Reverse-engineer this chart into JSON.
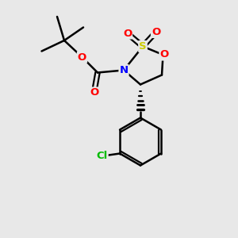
{
  "background_color": "#e8e8e8",
  "atom_colors": {
    "S": "#cccc00",
    "O": "#ff0000",
    "N": "#0000ff",
    "Cl": "#00bb00",
    "C": "#000000"
  },
  "bond_color": "#000000",
  "figsize": [
    3.0,
    3.0
  ],
  "dpi": 100,
  "xlim": [
    0,
    10
  ],
  "ylim": [
    0,
    10
  ]
}
